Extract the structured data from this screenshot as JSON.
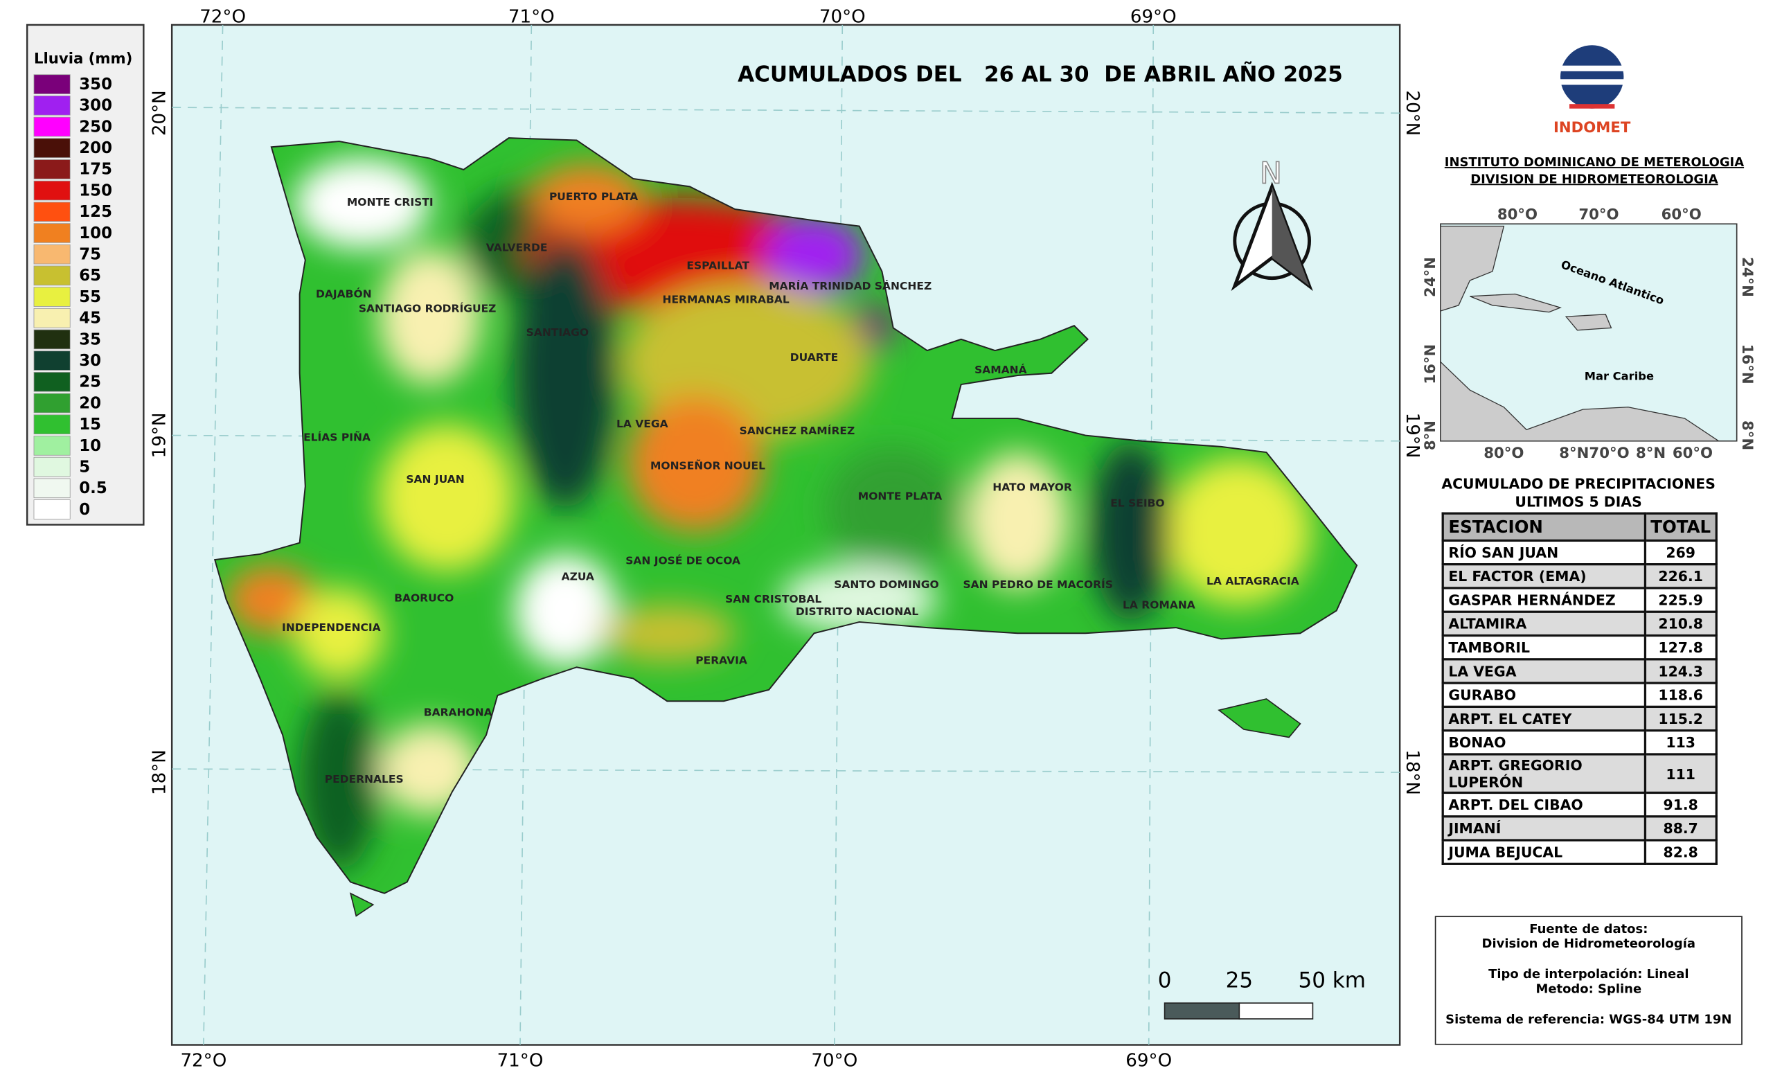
{
  "legend": {
    "title": "Lluvia (mm)",
    "items": [
      {
        "label": "350",
        "color": "#7a007a"
      },
      {
        "label": "300",
        "color": "#a020f0"
      },
      {
        "label": "250",
        "color": "#ff00ff"
      },
      {
        "label": "200",
        "color": "#4a1008"
      },
      {
        "label": "175",
        "color": "#8b1a1a"
      },
      {
        "label": "150",
        "color": "#e01010"
      },
      {
        "label": "125",
        "color": "#ff5010"
      },
      {
        "label": "100",
        "color": "#f08020"
      },
      {
        "label": "75",
        "color": "#f8b870"
      },
      {
        "label": "65",
        "color": "#c8c030"
      },
      {
        "label": "55",
        "color": "#e8f040"
      },
      {
        "label": "45",
        "color": "#f8f0b0"
      },
      {
        "label": "35",
        "color": "#203010"
      },
      {
        "label": "30",
        "color": "#104030"
      },
      {
        "label": "25",
        "color": "#106020"
      },
      {
        "label": "20",
        "color": "#30a030"
      },
      {
        "label": "15",
        "color": "#30c030"
      },
      {
        "label": "10",
        "color": "#a0f0a0"
      },
      {
        "label": "5",
        "color": "#e0f8e0"
      },
      {
        "label": "0.5",
        "color": "#f0f8f0"
      },
      {
        "label": "0",
        "color": "#ffffff"
      }
    ]
  },
  "map": {
    "title": "ACUMULADOS DEL   26 AL 30  DE ABRIL AÑO 2025",
    "lon_labels": [
      "72°O",
      "71°O",
      "70°O",
      "69°O"
    ],
    "lat_labels": [
      "20°N",
      "19°N",
      "18°N"
    ],
    "north": "N",
    "places": [
      "MONTE CRISTI",
      "PUERTO PLATA",
      "VALVERDE",
      "ESPAILLAT",
      "DAJABÓN",
      "SANTIAGO RODRÍGUEZ",
      "SANTIAGO",
      "HERMANAS MIRABAL",
      "MARÍA TRINIDAD SÁNCHEZ",
      "DUARTE",
      "SAMANÁ",
      "ELÍAS PIÑA",
      "LA VEGA",
      "SANCHEZ RAMÍREZ",
      "SAN JUAN",
      "MONSEÑOR NOUEL",
      "MONTE PLATA",
      "HATO MAYOR",
      "EL SEIBO",
      "SAN JOSÉ DE OCOA",
      "AZUA",
      "SAN CRISTOBAL",
      "SANTO DOMINGO",
      "DISTRITO NACIONAL",
      "SAN PEDRO DE MACORÍS",
      "LA ALTAGRACIA",
      "LA ROMANA",
      "BAORUCO",
      "INDEPENDENCIA",
      "PERAVIA",
      "BARAHONA",
      "PEDERNALES"
    ],
    "scale": [
      "0",
      "25",
      "50 km"
    ]
  },
  "logo": {
    "name": "INDOMET"
  },
  "header": [
    "INSTITUTO DOMINICANO DE METEROLOGIA",
    "DIVISION DE HIDROMETEOROLOGIA"
  ],
  "inset": {
    "top_labels": [
      "80°O",
      "70°O",
      "60°O"
    ],
    "bottom_labels": [
      "80°O",
      "8°N70°O",
      "8°N",
      "60°O"
    ],
    "left_labels": [
      "24°N",
      "16°N",
      "8°N"
    ],
    "right_labels": [
      "24°N",
      "16°N",
      "8°N"
    ],
    "ocean": "Oceano Atlantico",
    "sea": "Mar Caribe"
  },
  "table": {
    "title": [
      "ACUMULADO DE PRECIPITACIONES",
      "ULTIMOS 5 DIAS"
    ],
    "header": [
      "ESTACION",
      "TOTAL"
    ],
    "rows": [
      [
        "RÍO SAN JUAN",
        269
      ],
      [
        "EL FACTOR (EMA)",
        226.1
      ],
      [
        "GASPAR HERNÁNDEZ",
        225.9
      ],
      [
        "ALTAMIRA",
        210.8
      ],
      [
        "TAMBORIL",
        127.8
      ],
      [
        "LA VEGA",
        124.3
      ],
      [
        "GURABO",
        118.6
      ],
      [
        "ARPT. EL CATEY",
        115.2
      ],
      [
        "BONAO",
        113
      ],
      [
        "ARPT. GREGORIO LUPERÓN",
        111
      ],
      [
        "ARPT. DEL CIBAO",
        91.8
      ],
      [
        "JIMANÍ",
        88.7
      ],
      [
        "JUMA BEJUCAL",
        82.8
      ]
    ]
  },
  "source": [
    "Fuente de datos:",
    "Division de Hidrometeorología",
    "Tipo de interpolación: Lineal",
    "Metodo: Spline",
    "Sistema de referencia: WGS-84 UTM 19N"
  ]
}
